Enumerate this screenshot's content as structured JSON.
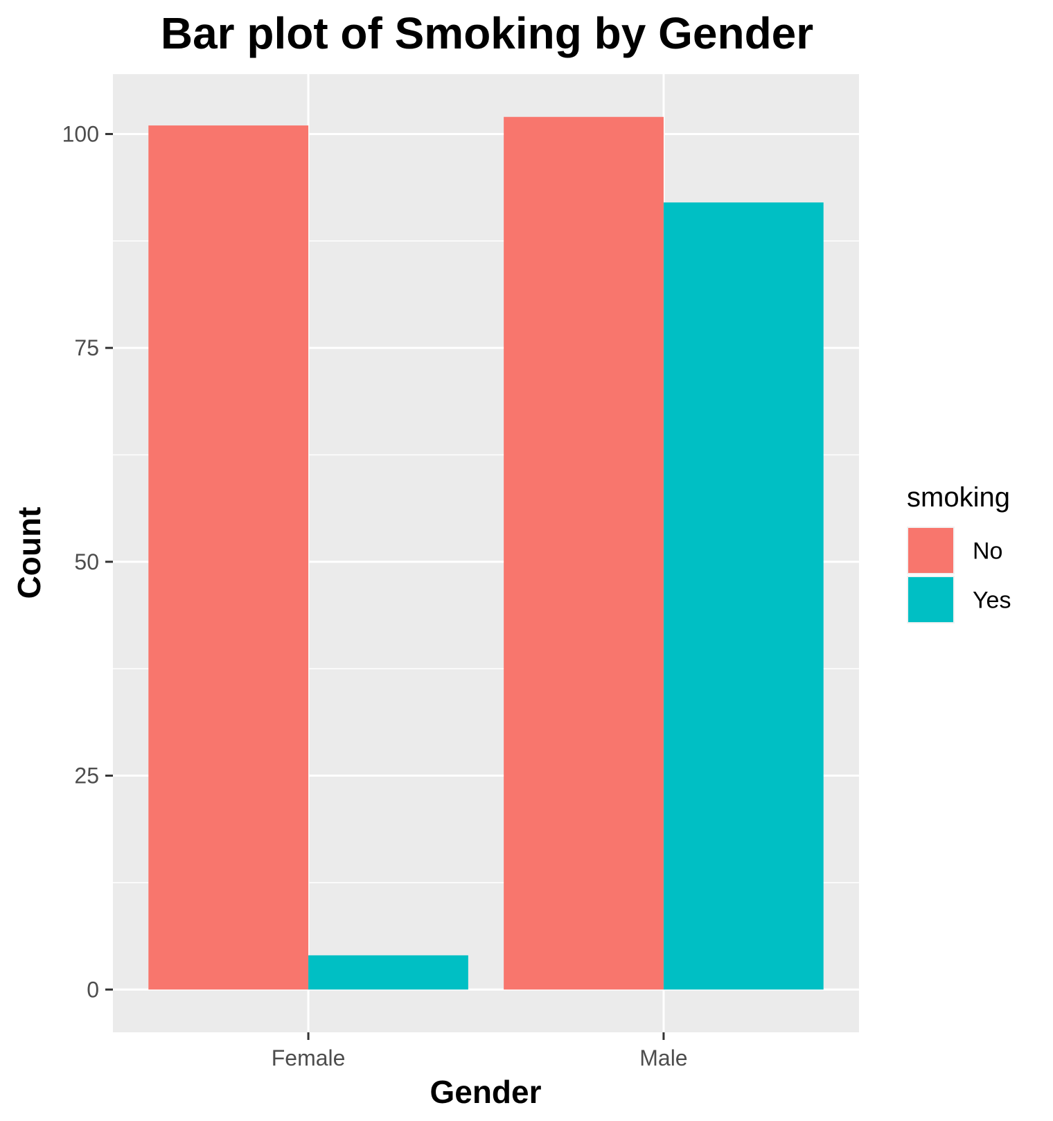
{
  "chart_data": {
    "type": "bar",
    "title": "Bar plot of Smoking by Gender",
    "xlabel": "Gender",
    "ylabel": "Count",
    "categories": [
      "Female",
      "Male"
    ],
    "series": [
      {
        "name": "No",
        "values": [
          101,
          102
        ],
        "color": "#F8766D"
      },
      {
        "name": "Yes",
        "values": [
          4,
          92
        ],
        "color": "#00BFC4"
      }
    ],
    "ylim": [
      -5,
      107
    ],
    "yticks": [
      0,
      25,
      50,
      75,
      100
    ],
    "ytick_labels": [
      "0",
      "25",
      "50",
      "75",
      "100"
    ],
    "grid": true,
    "legend": {
      "title": "smoking",
      "placement": "right"
    },
    "colors": {
      "panel_background": "#EBEBEB",
      "grid": "#FFFFFF",
      "tick_text": "#4D4D4D"
    }
  }
}
